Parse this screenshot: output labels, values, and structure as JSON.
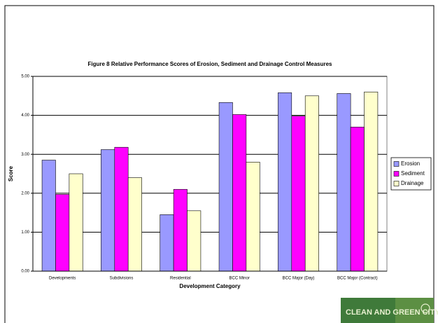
{
  "chart_data": {
    "type": "bar",
    "title": "Figure 8  Relative Performance Scores of Erosion, Sediment and Drainage Control Measures",
    "x_label": "Development Category",
    "y_label": "Score",
    "categories": [
      "Developments",
      "Subdivisions",
      "Residential",
      "BCC Minor",
      "BCC Major (Day)",
      "BCC Major (Contract)"
    ],
    "series": [
      {
        "name": "Erosion",
        "color": "#9999ff",
        "values": [
          2.85,
          3.12,
          1.45,
          4.33,
          4.58,
          4.56
        ]
      },
      {
        "name": "Sediment",
        "color": "#ff00ff",
        "values": [
          1.97,
          3.18,
          2.1,
          4.02,
          3.98,
          3.7
        ]
      },
      {
        "name": "Drainage",
        "color": "#ffffcc",
        "values": [
          2.5,
          2.4,
          1.55,
          2.8,
          4.5,
          4.6
        ]
      }
    ],
    "ylim": [
      0,
      5
    ],
    "yticks": [
      {
        "value": 0,
        "label": "0.00"
      },
      {
        "value": 1,
        "label": "1.00"
      },
      {
        "value": 2,
        "label": "2.00"
      },
      {
        "value": 3,
        "label": "3.00"
      },
      {
        "value": 4,
        "label": "4.00"
      },
      {
        "value": 5,
        "label": "5.00"
      }
    ],
    "grid": true,
    "legend": "right"
  },
  "banner_text": "CLEAN AND GREEN CITY"
}
